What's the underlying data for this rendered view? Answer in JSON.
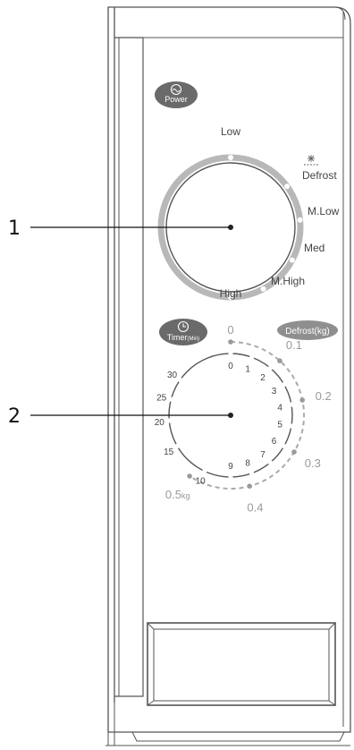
{
  "callouts": [
    {
      "number": "1",
      "target": "power-knob"
    },
    {
      "number": "2",
      "target": "timer-knob"
    }
  ],
  "power_panel": {
    "badge_label": "Power",
    "levels": [
      "Low",
      "Defrost",
      "M.Low",
      "Med",
      "M.High",
      "High"
    ]
  },
  "timer_panel": {
    "timer_badge_label": "Timer",
    "timer_badge_unit": "(Min)",
    "defrost_badge_label": "Defrost(kg)",
    "minute_marks": [
      "0",
      "1",
      "2",
      "3",
      "4",
      "5",
      "6",
      "7",
      "8",
      "9",
      "10",
      "15",
      "20",
      "25",
      "30"
    ],
    "weight_marks": [
      "0",
      "0.1",
      "0.2",
      "0.3",
      "0.4",
      "0.5"
    ],
    "weight_unit": "kg"
  },
  "colors": {
    "outline": "#555555",
    "power_ring": "#b8b8b8",
    "timer_ring": "#5e5e5e",
    "dashed_ring": "#aaaaaa",
    "badge_fill": "#6a6a6a",
    "defrost_badge_fill": "#8f8f8f"
  }
}
